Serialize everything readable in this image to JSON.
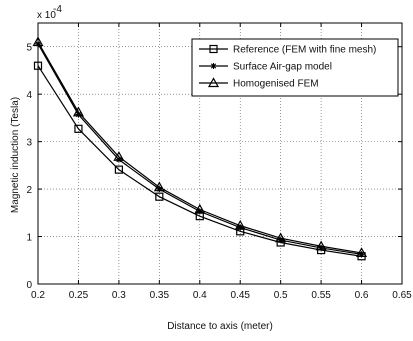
{
  "chart_data": {
    "type": "line",
    "title": "",
    "xlabel": "Distance to axis (meter)",
    "ylabel": "Magnetic induction (Tesla)",
    "y_scale_note": "x 10",
    "y_scale_exponent": "-4",
    "xlim": [
      0.2,
      0.65
    ],
    "ylim": [
      0,
      0.00055
    ],
    "x_ticks": [
      "0.2",
      "0.25",
      "0.3",
      "0.35",
      "0.4",
      "0.45",
      "0.5",
      "0.55",
      "0.6",
      "0.65"
    ],
    "y_ticks": [
      "0",
      "1",
      "2",
      "3",
      "4",
      "5"
    ],
    "grid": true,
    "legend_position": "top-right",
    "x": [
      0.2,
      0.25,
      0.3,
      0.35,
      0.4,
      0.45,
      0.5,
      0.55,
      0.6
    ],
    "series": [
      {
        "name": "Reference (FEM with fine mesh)",
        "marker": "square",
        "values": [
          0.00046,
          0.000327,
          0.000241,
          0.000184,
          0.000143,
          0.000111,
          8.75e-05,
          7.15e-05,
          5.85e-05
        ]
      },
      {
        "name": "Surface Air-gap model",
        "marker": "star",
        "values": [
          0.000506,
          0.000357,
          0.000262,
          0.0002,
          0.000153,
          0.000119,
          9.25e-05,
          7.6e-05,
          6.25e-05
        ]
      },
      {
        "name": "Homogenised FEM",
        "marker": "triangle",
        "values": [
          0.00051,
          0.000362,
          0.000268,
          0.000204,
          0.000157,
          0.000123,
          9.65e-05,
          7.95e-05,
          6.55e-05
        ]
      }
    ]
  }
}
